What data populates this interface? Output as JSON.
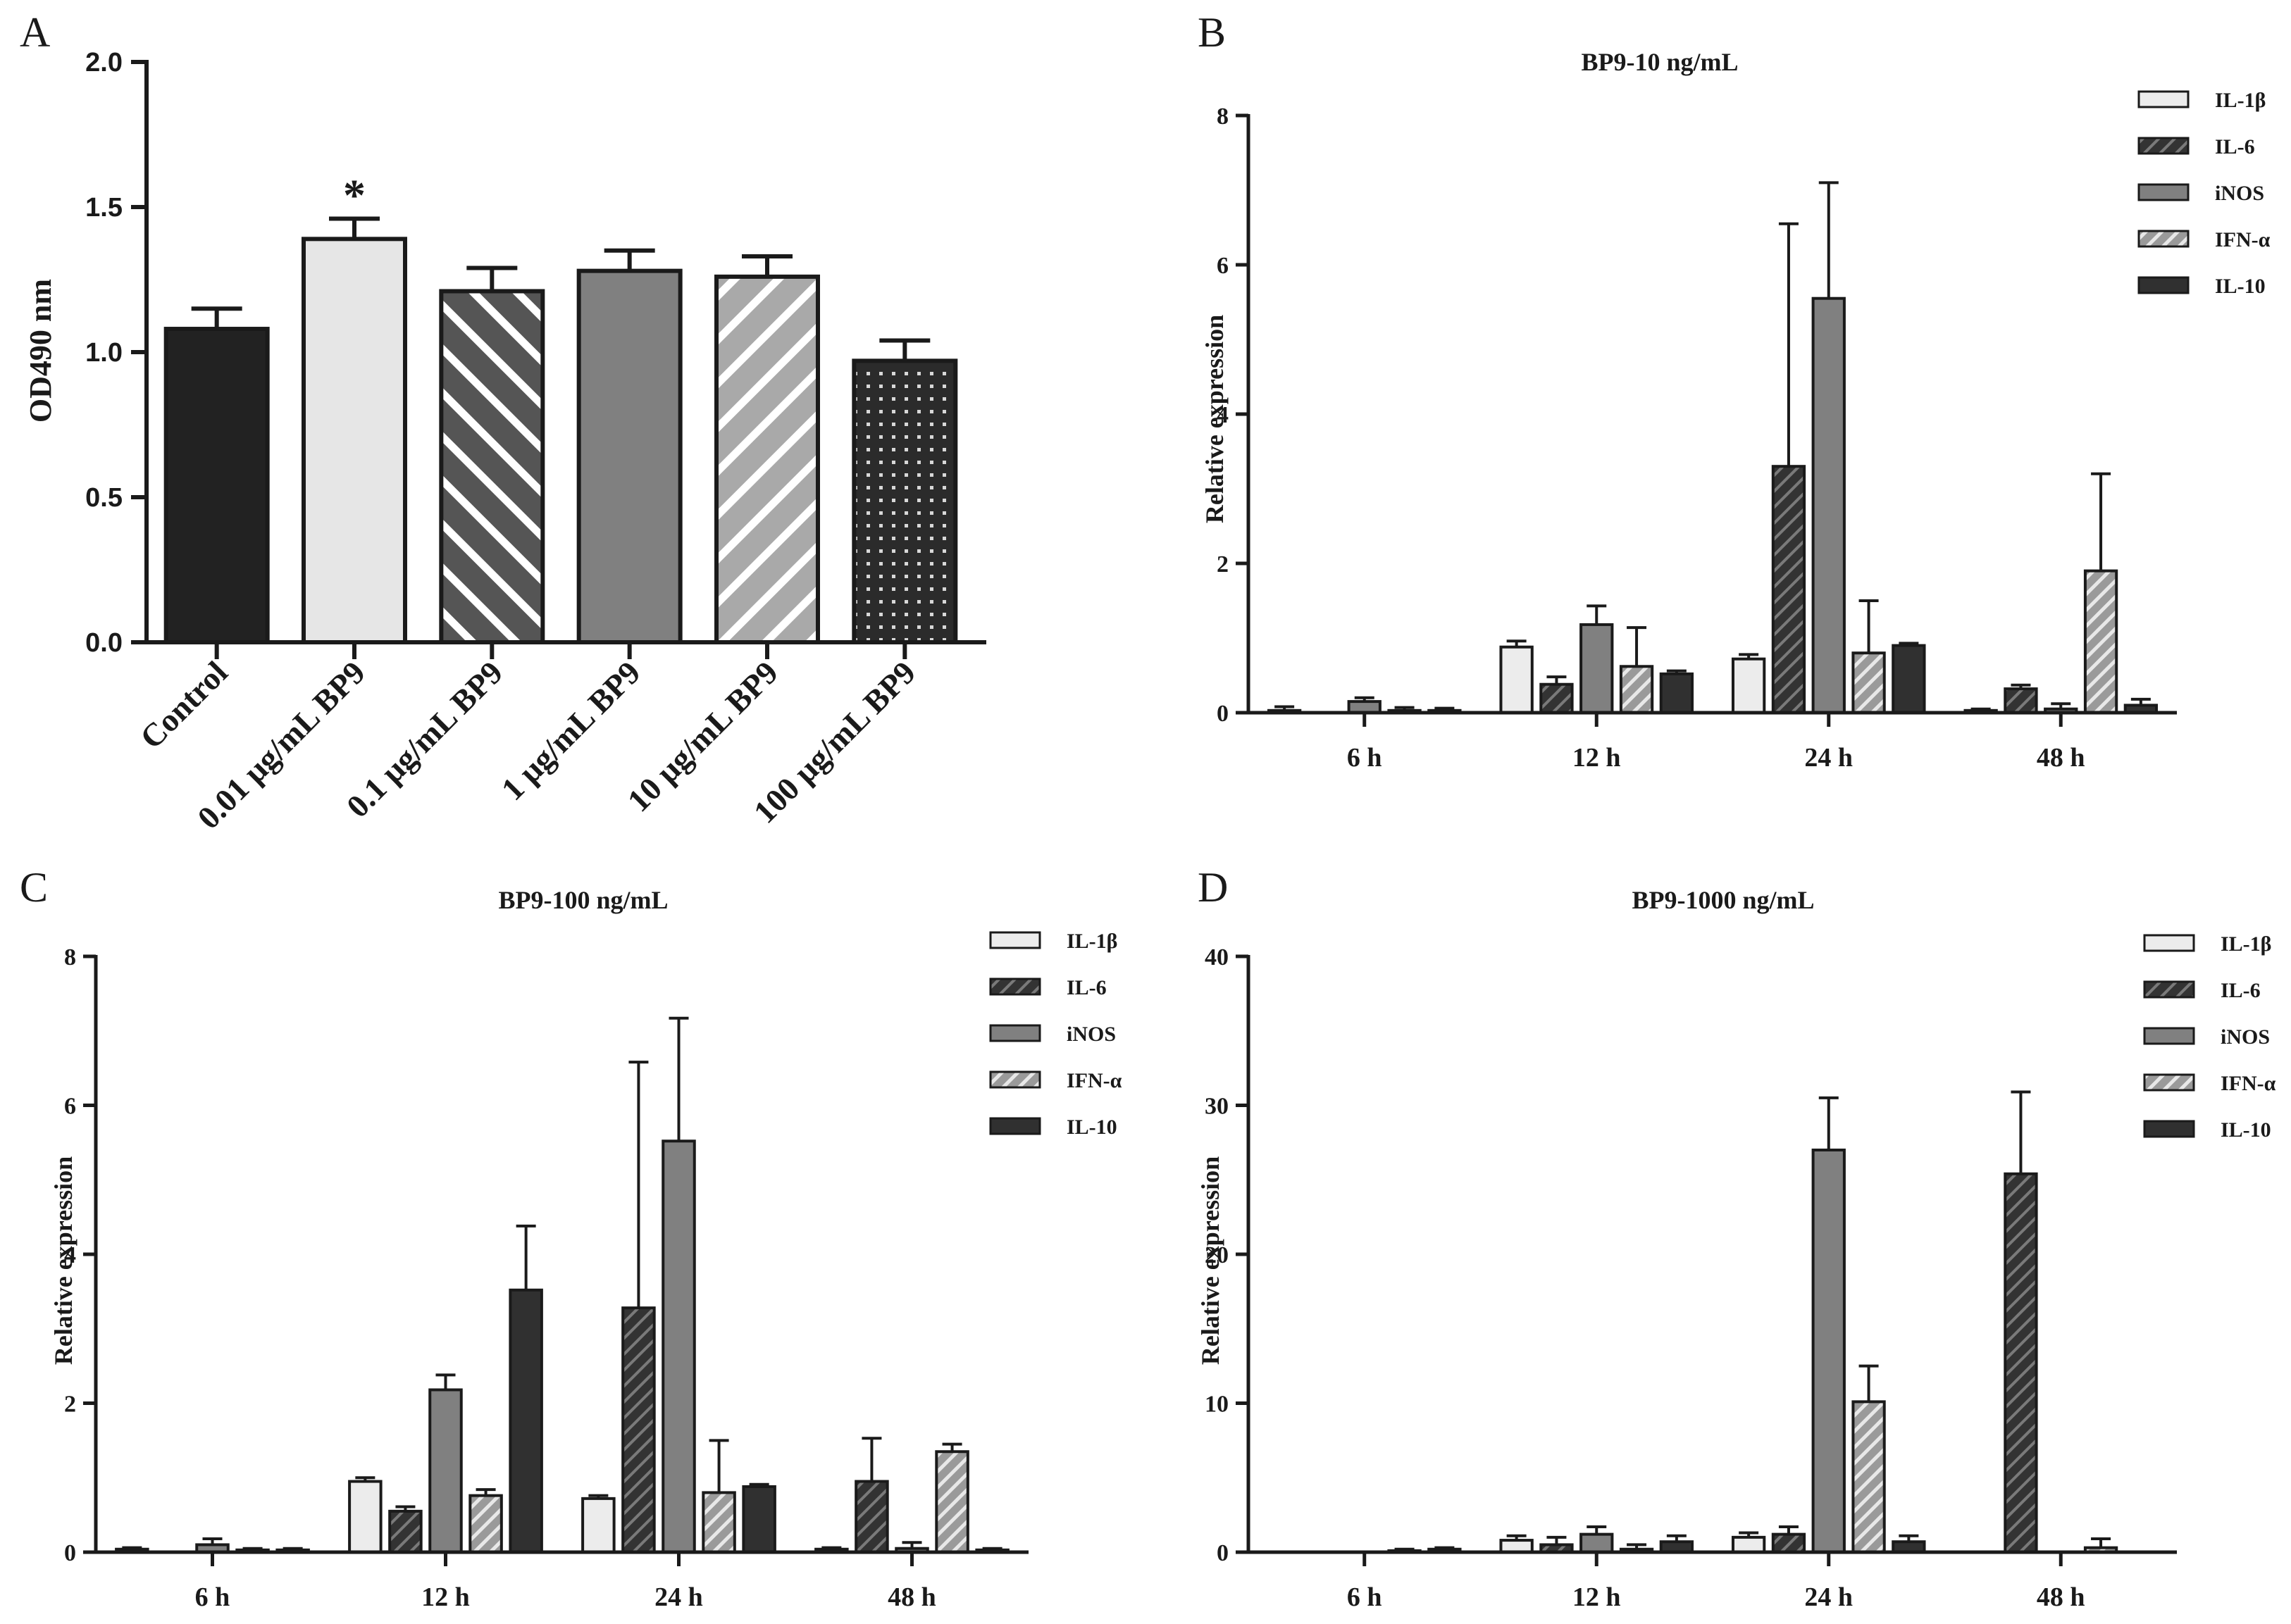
{
  "colors": {
    "axis": "#1a1a1a",
    "black": "#222222",
    "light": "#e6e6e6",
    "dark_gray": "#585858",
    "mid_gray": "#808080",
    "light_gray": "#a6a6a6",
    "darker": "#303030",
    "white": "#ffffff"
  },
  "chart_data": [
    {
      "panel": "A",
      "type": "bar",
      "title": "",
      "xlabel": "",
      "ylabel": "OD490 nm",
      "ylim": [
        0,
        2.0
      ],
      "yticks": [
        "0.0",
        "0.5",
        "1.0",
        "1.5",
        "2.0"
      ],
      "categories": [
        "Control",
        "0.01 μg/mL BP9",
        "0.1 μg/mL BP9",
        "1 μg/mL BP9",
        "10 μg/mL BP9",
        "100 μg/mL BP9"
      ],
      "values": [
        1.08,
        1.39,
        1.21,
        1.28,
        1.26,
        0.97
      ],
      "errors": [
        0.07,
        0.07,
        0.08,
        0.07,
        0.07,
        0.07
      ],
      "patterns": [
        "solid-black",
        "solid-light",
        "diag-dark",
        "solid-mid",
        "diag-light",
        "dots"
      ],
      "annotations": [
        {
          "category": "0.01 μg/mL BP9",
          "text": "*"
        }
      ]
    },
    {
      "panel": "B",
      "type": "bar",
      "title": "BP9-10 ng/mL",
      "xlabel": "",
      "ylabel": "Relative expression",
      "ylim": [
        0,
        8
      ],
      "yticks": [
        "0",
        "2",
        "4",
        "6",
        "8"
      ],
      "categories": [
        "6 h",
        "12 h",
        "24 h",
        "48 h"
      ],
      "series": [
        {
          "name": "IL-1β",
          "values": [
            0.03,
            0.88,
            0.72,
            0.03
          ],
          "errors": [
            0.05,
            0.08,
            0.06,
            0.02
          ]
        },
        {
          "name": "IL-6",
          "values": [
            0.0,
            0.38,
            3.3,
            0.32
          ],
          "errors": [
            0.0,
            0.1,
            3.25,
            0.05
          ]
        },
        {
          "name": "iNOS",
          "values": [
            0.15,
            1.18,
            5.55,
            0.05
          ],
          "errors": [
            0.05,
            0.25,
            1.55,
            0.07
          ]
        },
        {
          "name": "IFN-α",
          "values": [
            0.03,
            0.62,
            0.8,
            1.9
          ],
          "errors": [
            0.04,
            0.52,
            0.7,
            1.3
          ]
        },
        {
          "name": "IL-10",
          "values": [
            0.03,
            0.52,
            0.9,
            0.1
          ],
          "errors": [
            0.03,
            0.04,
            0.03,
            0.08
          ]
        }
      ]
    },
    {
      "panel": "C",
      "type": "bar",
      "title": "BP9-100 ng/mL",
      "xlabel": "",
      "ylabel": "Relative expression",
      "ylim": [
        0,
        8
      ],
      "yticks": [
        "0",
        "2",
        "4",
        "6",
        "8"
      ],
      "categories": [
        "6 h",
        "12 h",
        "24 h",
        "48 h"
      ],
      "series": [
        {
          "name": "IL-1β",
          "values": [
            0.04,
            0.95,
            0.72,
            0.04
          ],
          "errors": [
            0.02,
            0.05,
            0.04,
            0.02
          ]
        },
        {
          "name": "IL-6",
          "values": [
            0.0,
            0.55,
            3.28,
            0.95
          ],
          "errors": [
            0.0,
            0.06,
            3.3,
            0.58
          ]
        },
        {
          "name": "iNOS",
          "values": [
            0.1,
            2.18,
            5.52,
            0.05
          ],
          "errors": [
            0.08,
            0.2,
            1.65,
            0.08
          ]
        },
        {
          "name": "IFN-α",
          "values": [
            0.03,
            0.76,
            0.8,
            1.35
          ],
          "errors": [
            0.02,
            0.08,
            0.7,
            0.1
          ]
        },
        {
          "name": "IL-10",
          "values": [
            0.03,
            3.52,
            0.88,
            0.03
          ],
          "errors": [
            0.02,
            0.86,
            0.03,
            0.02
          ]
        }
      ]
    },
    {
      "panel": "D",
      "type": "bar",
      "title": "BP9-1000 ng/mL",
      "xlabel": "",
      "ylabel": "Relative expression",
      "ylim": [
        0,
        40
      ],
      "yticks": [
        "0",
        "10",
        "20",
        "30",
        "40"
      ],
      "categories": [
        "6 h",
        "12 h",
        "24 h",
        "48 h"
      ],
      "series": [
        {
          "name": "IL-1β",
          "values": [
            0.0,
            0.8,
            1.0,
            0.0
          ],
          "errors": [
            0.0,
            0.3,
            0.3,
            0.0
          ]
        },
        {
          "name": "IL-6",
          "values": [
            0.0,
            0.5,
            1.2,
            25.4
          ],
          "errors": [
            0.0,
            0.5,
            0.5,
            5.5
          ]
        },
        {
          "name": "iNOS",
          "values": [
            0.0,
            1.2,
            27.0,
            0.0
          ],
          "errors": [
            0.0,
            0.5,
            3.5,
            0.0
          ]
        },
        {
          "name": "IFN-α",
          "values": [
            0.1,
            0.2,
            10.1,
            0.3
          ],
          "errors": [
            0.1,
            0.3,
            2.4,
            0.6
          ]
        },
        {
          "name": "IL-10",
          "values": [
            0.2,
            0.7,
            0.7,
            0.0
          ],
          "errors": [
            0.1,
            0.4,
            0.4,
            0.0
          ]
        }
      ]
    }
  ]
}
